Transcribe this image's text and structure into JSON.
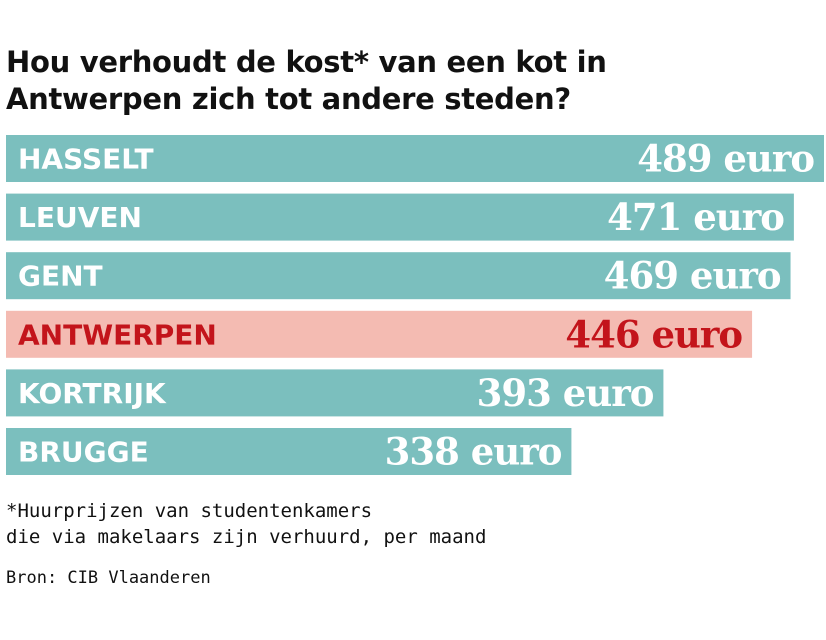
{
  "title_lines": [
    "Hou verhoudt de kost* van een kot in",
    "Antwerpen zich tot andere steden?"
  ],
  "chart_data": {
    "type": "bar",
    "orientation": "horizontal",
    "categories": [
      "HASSELT",
      "LEUVEN",
      "GENT",
      "ANTWERPEN",
      "KORTRIJK",
      "BRUGGE"
    ],
    "values": [
      489,
      471,
      469,
      446,
      393,
      338
    ],
    "value_labels": [
      "489 euro",
      "471 euro",
      "469 euro",
      "446 euro",
      "393 euro",
      "338 euro"
    ],
    "unit": "euro",
    "highlight": "ANTWERPEN",
    "grid": false,
    "colors": {
      "bar": "#7bbfbe",
      "highlight_bar": "#f4bbb2",
      "label": "#ffffff",
      "highlight_label": "#c3141b"
    }
  },
  "footnote_lines": [
    "*Huurprijzen van studentenkamers",
    "die via makelaars zijn verhuurd, per maand"
  ],
  "source": "Bron: CIB Vlaanderen"
}
